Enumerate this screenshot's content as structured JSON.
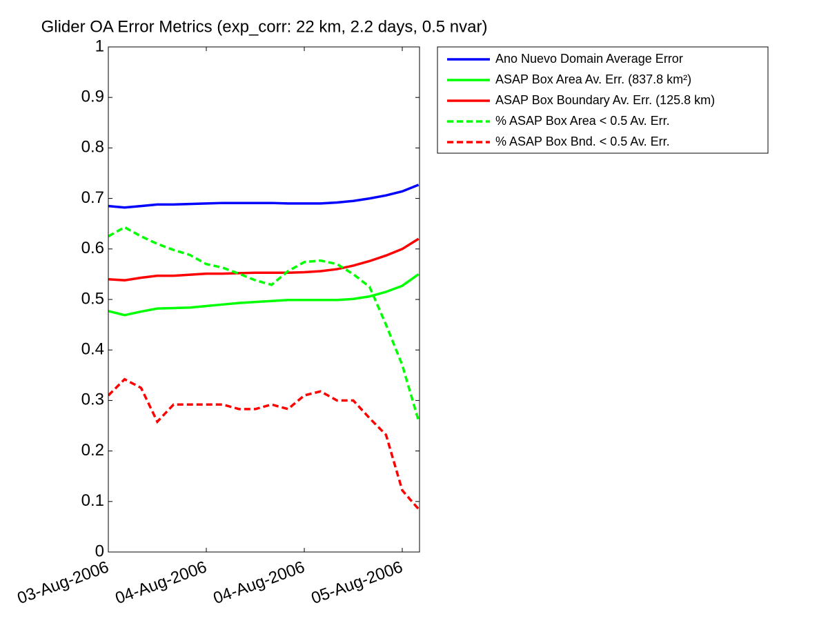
{
  "chart_data": {
    "type": "line",
    "title": "Glider OA Error Metrics (exp_corr: 22 km, 2.2 days, 0.5 nvar)",
    "x": [
      0,
      0.083,
      0.167,
      0.25,
      0.333,
      0.417,
      0.5,
      0.583,
      0.667,
      0.75,
      0.833,
      0.917,
      1,
      1.083,
      1.167,
      1.25,
      1.333,
      1.417,
      1.5,
      1.583
    ],
    "xlim": [
      0,
      1.588
    ],
    "xticks": [
      {
        "value": 0,
        "label": "03-Aug-2006"
      },
      {
        "value": 0.5,
        "label": "04-Aug-2006"
      },
      {
        "value": 1,
        "label": "04-Aug-2006"
      },
      {
        "value": 1.5,
        "label": "05-Aug-2006"
      }
    ],
    "ylim": [
      0,
      1
    ],
    "yticks": [
      0,
      0.1,
      0.2,
      0.3,
      0.4,
      0.5,
      0.6,
      0.7,
      0.8,
      0.9,
      1
    ],
    "legend": "outside-upper-right",
    "series": [
      {
        "name": "Ano Nuevo Domain Average Error",
        "color": "#0000ff",
        "dash": false,
        "values": [
          0.685,
          0.682,
          0.685,
          0.688,
          0.688,
          0.689,
          0.69,
          0.691,
          0.691,
          0.691,
          0.691,
          0.69,
          0.69,
          0.69,
          0.692,
          0.695,
          0.7,
          0.706,
          0.714,
          0.727
        ]
      },
      {
        "name": "ASAP Box Area Av. Err. (837.8 km²)",
        "color": "#00ff00",
        "dash": false,
        "values": [
          0.477,
          0.469,
          0.476,
          0.482,
          0.483,
          0.484,
          0.487,
          0.49,
          0.493,
          0.495,
          0.497,
          0.499,
          0.499,
          0.499,
          0.499,
          0.501,
          0.506,
          0.515,
          0.527,
          0.55
        ]
      },
      {
        "name": "ASAP Box Boundary Av. Err. (125.8 km)",
        "color": "#ff0000",
        "dash": false,
        "values": [
          0.54,
          0.538,
          0.543,
          0.547,
          0.547,
          0.549,
          0.551,
          0.551,
          0.552,
          0.553,
          0.553,
          0.553,
          0.554,
          0.556,
          0.56,
          0.567,
          0.576,
          0.587,
          0.6,
          0.62
        ]
      },
      {
        "name": "% ASAP Box Area < 0.5 Av. Err.",
        "color": "#00ff00",
        "dash": true,
        "values": [
          0.625,
          0.643,
          0.625,
          0.61,
          0.598,
          0.588,
          0.57,
          0.563,
          0.551,
          0.538,
          0.529,
          0.556,
          0.574,
          0.577,
          0.57,
          0.55,
          0.525,
          0.45,
          0.37,
          0.26
        ]
      },
      {
        "name": "% ASAP Box Bnd. < 0.5 Av. Err.",
        "color": "#ff0000",
        "dash": true,
        "values": [
          0.31,
          0.342,
          0.325,
          0.258,
          0.292,
          0.292,
          0.292,
          0.292,
          0.283,
          0.283,
          0.292,
          0.283,
          0.31,
          0.318,
          0.3,
          0.3,
          0.265,
          0.232,
          0.122,
          0.085
        ]
      }
    ]
  }
}
